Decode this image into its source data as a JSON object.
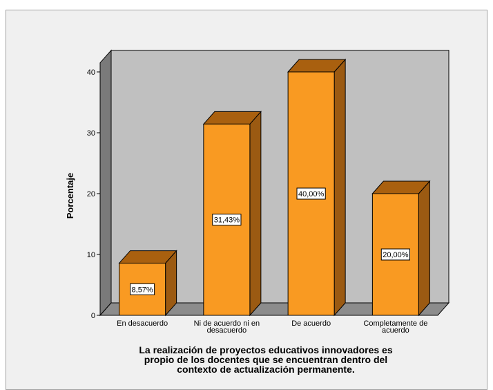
{
  "chart_data": {
    "type": "bar",
    "categories": [
      [
        "En desacuerdo"
      ],
      [
        "Ni de acuerdo ni en",
        "desacuerdo"
      ],
      [
        "De acuerdo"
      ],
      [
        "Completamente de",
        "acuerdo"
      ]
    ],
    "values": [
      8.57,
      31.43,
      40.0,
      20.0
    ],
    "data_labels": [
      "8,57%",
      "31,43%",
      "40,00%",
      "20,00%"
    ],
    "ylabel": "Porcentaje",
    "xlabel": [
      "La realización de proyectos educativos innovadores es",
      "propio de los docentes que se encuentran dentro del",
      "contexto de actualización permanente."
    ],
    "yticks": [
      0,
      10,
      20,
      30,
      40
    ],
    "ylim": [
      0,
      40
    ],
    "grid": false,
    "legend": "none",
    "colors": {
      "bar_front": "#f99a22",
      "bar_top": "#a9600f",
      "bar_side": "#9b5a12",
      "bar_stroke": "#000000",
      "plot_back": "#c0c0c0",
      "plot_left_wall": "#7a7a7a",
      "plot_floor": "#8c8c8c",
      "chart_bg": "#f0f0f0"
    }
  }
}
